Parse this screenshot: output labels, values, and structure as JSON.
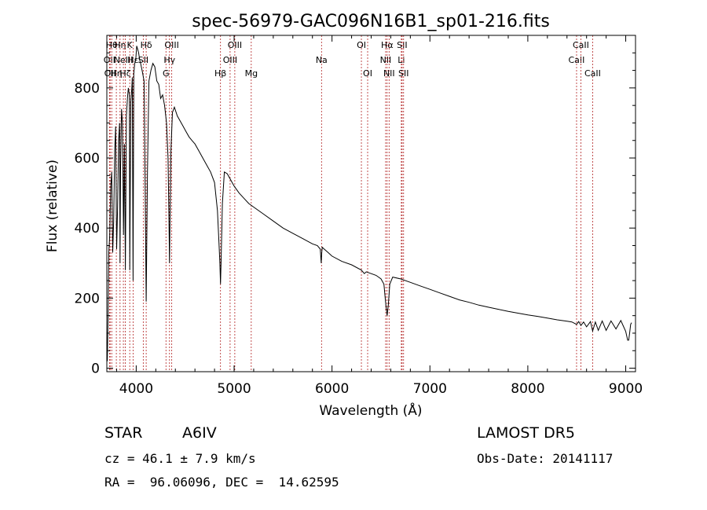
{
  "chart_data": {
    "type": "line",
    "title": "spec-56979-GAC096N16B1_sp01-216.fits",
    "xlabel": "Wavelength (Å)",
    "ylabel": "Flux (relative)",
    "xlim": [
      3700,
      9100
    ],
    "ylim": [
      -10,
      950
    ],
    "xticks": [
      4000,
      5000,
      6000,
      7000,
      8000,
      9000
    ],
    "xtick_labels": [
      "4000",
      "5000",
      "6000",
      "7000",
      "8000",
      "9000"
    ],
    "yticks": [
      0,
      200,
      400,
      600,
      800
    ],
    "ytick_labels": [
      "0",
      "200",
      "400",
      "600",
      "800"
    ],
    "grid": false,
    "series": [
      {
        "color": "#000000",
        "x": [
          3705,
          3712,
          3720,
          3730,
          3740,
          3750,
          3760,
          3770,
          3780,
          3790,
          3800,
          3810,
          3820,
          3830,
          3835,
          3840,
          3850,
          3860,
          3870,
          3880,
          3889,
          3900,
          3910,
          3920,
          3930,
          3934,
          3945,
          3955,
          3960,
          3968,
          3975,
          3985,
          3995,
          4005,
          4015,
          4025,
          4035,
          4045,
          4060,
          4080,
          4090,
          4102,
          4115,
          4130,
          4150,
          4170,
          4190,
          4210,
          4230,
          4250,
          4270,
          4290,
          4310,
          4325,
          4335,
          4340,
          4345,
          4355,
          4370,
          4390,
          4420,
          4450,
          4480,
          4510,
          4540,
          4570,
          4600,
          4640,
          4680,
          4720,
          4760,
          4800,
          4830,
          4845,
          4855,
          4861,
          4867,
          4880,
          4900,
          4930,
          4960,
          5000,
          5050,
          5100,
          5150,
          5200,
          5300,
          5400,
          5500,
          5600,
          5700,
          5800,
          5850,
          5880,
          5890,
          5895,
          5900,
          5920,
          5960,
          6000,
          6100,
          6200,
          6300,
          6330,
          6350,
          6400,
          6450,
          6500,
          6530,
          6550,
          6563,
          6575,
          6590,
          6620,
          6700,
          6800,
          6900,
          7000,
          7100,
          7200,
          7300,
          7400,
          7500,
          7600,
          7700,
          7800,
          7900,
          8000,
          8100,
          8200,
          8300,
          8400,
          8450,
          8498,
          8520,
          8542,
          8570,
          8600,
          8640,
          8662,
          8690,
          8720,
          8760,
          8800,
          8850,
          8900,
          8950,
          9000,
          9020,
          9030,
          9040,
          9050,
          9060
        ],
        "y": [
          20,
          140,
          330,
          380,
          520,
          560,
          330,
          420,
          620,
          690,
          340,
          460,
          650,
          700,
          300,
          560,
          740,
          700,
          380,
          640,
          280,
          720,
          770,
          800,
          780,
          280,
          760,
          800,
          830,
          250,
          840,
          870,
          880,
          920,
          910,
          900,
          880,
          870,
          850,
          820,
          560,
          190,
          560,
          820,
          850,
          870,
          860,
          820,
          810,
          770,
          780,
          750,
          700,
          600,
          420,
          300,
          420,
          620,
          730,
          745,
          720,
          705,
          690,
          675,
          660,
          650,
          640,
          620,
          600,
          580,
          560,
          530,
          450,
          360,
          300,
          240,
          300,
          470,
          560,
          555,
          540,
          520,
          500,
          485,
          470,
          460,
          440,
          420,
          400,
          385,
          370,
          355,
          350,
          340,
          300,
          330,
          345,
          340,
          330,
          320,
          305,
          295,
          280,
          270,
          275,
          270,
          265,
          255,
          240,
          180,
          150,
          180,
          240,
          260,
          255,
          245,
          235,
          225,
          215,
          205,
          195,
          188,
          180,
          174,
          168,
          162,
          157,
          152,
          148,
          143,
          138,
          134,
          132,
          125,
          133,
          122,
          132,
          118,
          133,
          106,
          132,
          108,
          135,
          108,
          135,
          112,
          136,
          105,
          80,
          80,
          100,
          125,
          130
        ]
      }
    ],
    "lines": [
      {
        "x": 3727,
        "label": "OII",
        "row": 1
      },
      {
        "x": 3734,
        "label": "OII",
        "row": 2
      },
      {
        "x": 3750,
        "label": "Hθ",
        "row": 0
      },
      {
        "x": 3797,
        "label": "Hη",
        "row": 2
      },
      {
        "x": 3835,
        "label": "Hη",
        "row": 0
      },
      {
        "x": 3869,
        "label": "NeIII",
        "row": 1
      },
      {
        "x": 3889,
        "label": "Hζ",
        "row": 2
      },
      {
        "x": 3934,
        "label": "K",
        "row": 0
      },
      {
        "x": 3968,
        "label": "Hε",
        "row": 1
      },
      {
        "x": 4072,
        "label": "SII",
        "row": 1
      },
      {
        "x": 4102,
        "label": "Hδ",
        "row": 0
      },
      {
        "x": 4304,
        "label": "G",
        "row": 2
      },
      {
        "x": 4340,
        "label": "Hγ",
        "row": 1
      },
      {
        "x": 4363,
        "label": "OIII",
        "row": 0
      },
      {
        "x": 4861,
        "label": "Hβ",
        "row": 2
      },
      {
        "x": 4959,
        "label": "OIII",
        "row": 1
      },
      {
        "x": 5007,
        "label": "OIII",
        "row": 0
      },
      {
        "x": 5175,
        "label": "Mg",
        "row": 2
      },
      {
        "x": 5893,
        "label": "Na",
        "row": 1
      },
      {
        "x": 6300,
        "label": "OI",
        "row": 0
      },
      {
        "x": 6364,
        "label": "OI",
        "row": 2
      },
      {
        "x": 6548,
        "label": "NII",
        "row": 1
      },
      {
        "x": 6563,
        "label": "Hα",
        "row": 0
      },
      {
        "x": 6583,
        "label": "NII",
        "row": 2
      },
      {
        "x": 6708,
        "label": "Li",
        "row": 1
      },
      {
        "x": 6716,
        "label": "SII",
        "row": 0
      },
      {
        "x": 6731,
        "label": "SII",
        "row": 2
      },
      {
        "x": 8498,
        "label": "CaII",
        "row": 1
      },
      {
        "x": 8542,
        "label": "CaII",
        "row": 0
      },
      {
        "x": 8662,
        "label": "CaII",
        "row": 2
      }
    ],
    "line_color": "#b22222"
  },
  "info": {
    "object_class": "STAR",
    "subclass": "A6IV",
    "survey": "LAMOST DR5",
    "redshift": "cz = 46.1 ± 7.9 km/s",
    "obs_date": "Obs-Date: 20141117",
    "coords": "RA =  96.06096, DEC =  14.62595"
  }
}
